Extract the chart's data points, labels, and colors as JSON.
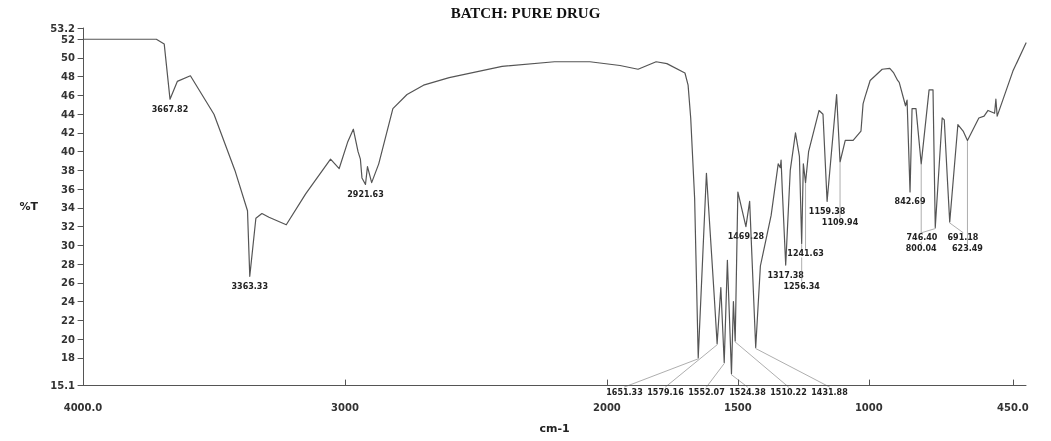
{
  "chart_data": {
    "type": "line",
    "title": "BATCH: PURE DRUG",
    "xlabel": "cm-1",
    "ylabel": "%T",
    "xlim": [
      4000,
      400
    ],
    "xticks": [
      {
        "value": 4000,
        "label": "4000.0"
      },
      3000,
      2000,
      1500,
      1000,
      {
        "value": 450,
        "label": "450.0"
      }
    ],
    "ylim": [
      15.1,
      53.2
    ],
    "yticks": [
      15.1,
      18,
      20,
      22,
      24,
      26,
      28,
      30,
      32,
      34,
      36,
      38,
      40,
      42,
      44,
      46,
      48,
      50,
      52,
      53.2
    ],
    "grid": false,
    "marker": "none",
    "line_style": "solid",
    "series": [
      {
        "color": "#555555",
        "x": [
          4000,
          3720,
          3690,
          3667.82,
          3640,
          3590,
          3500,
          3420,
          3372,
          3363.33,
          3340,
          3317,
          3290,
          3224,
          3150,
          3055,
          3022,
          2990,
          2968,
          2950,
          2941,
          2935,
          2921.63,
          2914,
          2898,
          2871,
          2817,
          2763,
          2700,
          2602,
          2400,
          2200,
          2065,
          1950,
          1881,
          1812,
          1771,
          1702,
          1690,
          1680,
          1665,
          1651.33,
          1620,
          1590,
          1579.16,
          1565,
          1552.07,
          1540,
          1524.38,
          1517,
          1510.22,
          1500,
          1469.28,
          1455,
          1431.88,
          1414,
          1373,
          1346,
          1338,
          1335,
          1330,
          1317.38,
          1300,
          1280,
          1265,
          1256.34,
          1250,
          1241.63,
          1230,
          1190,
          1175,
          1159.38,
          1123,
          1109.94,
          1090,
          1060,
          1030,
          1022,
          1015,
          995,
          949,
          920,
          905,
          890,
          884,
          860,
          854,
          842.69,
          835,
          820,
          800.04,
          770,
          755,
          746.4,
          720,
          712,
          700,
          691.18,
          660,
          640,
          623.49,
          580,
          560,
          545,
          520,
          515,
          510,
          450,
          400
        ],
        "values": [
          52,
          52,
          51.5,
          45.6,
          47.5,
          48.1,
          44,
          38,
          33.7,
          26.7,
          32.9,
          33.4,
          33,
          32.2,
          35.5,
          39.2,
          38.2,
          41,
          42.4,
          40,
          39.2,
          37.2,
          36.5,
          38.4,
          36.7,
          38.7,
          44.6,
          46.1,
          47.1,
          47.9,
          49.1,
          49.6,
          49.6,
          49.2,
          48.8,
          49.6,
          49.4,
          48.4,
          47.1,
          43.6,
          35,
          18,
          37.7,
          24.5,
          19.5,
          25.5,
          17.5,
          28.4,
          16.3,
          24,
          19.8,
          35.7,
          32,
          34.7,
          19.1,
          27.8,
          33.2,
          38.7,
          38.3,
          39.1,
          35.7,
          27.9,
          38,
          42,
          39.5,
          30.2,
          38.7,
          36.7,
          40,
          44.4,
          44,
          34.7,
          46.1,
          38.9,
          41.2,
          41.2,
          42.2,
          45.1,
          45.8,
          47.6,
          48.8,
          48.9,
          48.4,
          47.6,
          47.4,
          44.9,
          45.5,
          35.7,
          44.6,
          44.6,
          38.7,
          46.6,
          46.6,
          31.9,
          43.6,
          43.4,
          37,
          32.5,
          42.9,
          42.2,
          41.2,
          43.6,
          43.8,
          44.4,
          44.1,
          45.6,
          43.8,
          48.6,
          51.6
        ]
      }
    ],
    "annotations": [
      {
        "text": "3667.82",
        "x": 3667.82,
        "y": 45.6
      },
      {
        "text": "3363.33",
        "x": 3363.33,
        "y": 26.7
      },
      {
        "text": "2921.63",
        "x": 2921.63,
        "y": 36.5
      },
      {
        "text": "1651.33",
        "x": 1651.33,
        "y": 18
      },
      {
        "text": "1579.16",
        "x": 1579.16,
        "y": 19.5
      },
      {
        "text": "1552.07",
        "x": 1552.07,
        "y": 17.5
      },
      {
        "text": "1524.38",
        "x": 1524.38,
        "y": 16.3
      },
      {
        "text": "1510.22",
        "x": 1510.22,
        "y": 19.8
      },
      {
        "text": "1469.28",
        "x": 1469.28,
        "y": 32
      },
      {
        "text": "1431.88",
        "x": 1431.88,
        "y": 19.1
      },
      {
        "text": "1317.38",
        "x": 1317.38,
        "y": 27.9
      },
      {
        "text": "1256.34",
        "x": 1256.34,
        "y": 30.2
      },
      {
        "text": "1241.63",
        "x": 1241.63,
        "y": 36.7
      },
      {
        "text": "1159.38",
        "x": 1159.38,
        "y": 34.7
      },
      {
        "text": "1109.94",
        "x": 1109.94,
        "y": 38.9
      },
      {
        "text": "842.69",
        "x": 842.69,
        "y": 35.7
      },
      {
        "text": "800.04",
        "x": 800.04,
        "y": 38.7
      },
      {
        "text": "746.40",
        "x": 746.4,
        "y": 31.9
      },
      {
        "text": "691.18",
        "x": 691.18,
        "y": 32.5
      },
      {
        "text": "623.49",
        "x": 623.49,
        "y": 41.2
      }
    ]
  }
}
